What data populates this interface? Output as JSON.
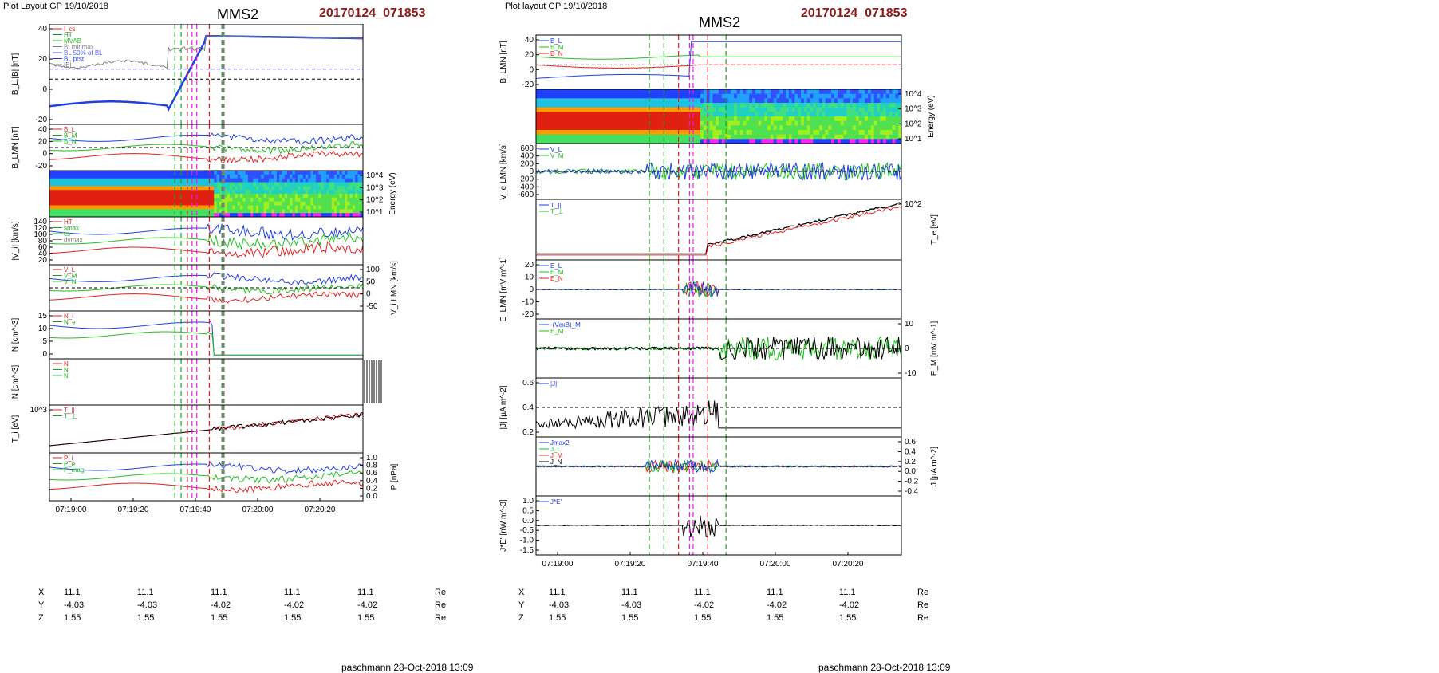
{
  "left": {
    "header": "Plot Layout GP 19/10/2018",
    "title": "MMS2",
    "event": "20170124_071853",
    "footer": "paschmann 28-Oct-2018 13:09",
    "xticks": [
      "07:19:00",
      "07:19:20",
      "07:19:40",
      "07:20:00",
      "07:20:20"
    ],
    "coords": {
      "rows": [
        {
          "label": "X",
          "values": [
            "11.1",
            "11.1",
            "11.1",
            "11.1",
            "11.1"
          ],
          "unit": "Re"
        },
        {
          "label": "Y",
          "values": [
            "-4.03",
            "-4.03",
            "-4.02",
            "-4.02",
            "-4.02"
          ],
          "unit": "Re"
        },
        {
          "label": "Z",
          "values": [
            "1.55",
            "1.55",
            "1.55",
            "1.55",
            "1.55"
          ],
          "unit": "Re"
        }
      ]
    }
  },
  "right": {
    "header": "Plot layout GP 19/10/2018",
    "title": "MMS2",
    "event": "20170124_071853",
    "footer": "paschmann 28-Oct-2018 13:09",
    "xticks": [
      "07:19:00",
      "07:19:20",
      "07:19:40",
      "07:20:00",
      "07:20:20"
    ],
    "coords": {
      "rows": [
        {
          "label": "X",
          "values": [
            "11.1",
            "11.1",
            "11.1",
            "11.1",
            "11.1"
          ],
          "unit": "Re"
        },
        {
          "label": "Y",
          "values": [
            "-4.03",
            "-4.03",
            "-4.02",
            "-4.02",
            "-4.02"
          ],
          "unit": "Re"
        },
        {
          "label": "Z",
          "values": [
            "1.55",
            "1.55",
            "1.55",
            "1.55",
            "1.55"
          ],
          "unit": "Re"
        }
      ]
    }
  },
  "chart_data": [
    {
      "type": "line",
      "title": "MMS2",
      "panels": [
        {
          "ylabel": "B_L,|B| [nT]",
          "yticks": [
            "40",
            "20",
            "0",
            "-20"
          ],
          "legend": [
            "I_cs",
            "HT",
            "MVAB",
            "BLminmax",
            "BL 50% of BL",
            "BL prst",
            "|B|"
          ],
          "series": [
            {
              "name": "BL prst",
              "color": "#1f3fe0"
            },
            {
              "name": "|B|",
              "color": "#808080"
            }
          ]
        },
        {
          "ylabel": "B_LMN [nT]",
          "yticks": [
            "40",
            "20",
            "0",
            "-20"
          ],
          "legend": [
            "B_L",
            "B_M",
            "B_N"
          ]
        },
        {
          "ylabel": "Energy (eV)",
          "yticks": [
            "10^4",
            "10^3",
            "10^2",
            "10^1"
          ],
          "kind": "spectrogram"
        },
        {
          "ylabel": "|V_i| [km/s]",
          "yticks": [
            "140",
            "120",
            "100",
            "80",
            "60",
            "40",
            "20"
          ],
          "legend": [
            "HT",
            "smax",
            "cs",
            "dvmax"
          ]
        },
        {
          "ylabel": "V_i LMN [km/s]",
          "yticks": [
            "100",
            "50",
            "0",
            "-50"
          ],
          "legend": [
            "V_L",
            "V_M",
            "V_N"
          ]
        },
        {
          "ylabel": "N [cm^-3]",
          "yticks": [
            "15",
            "10",
            "5",
            "0"
          ],
          "legend": [
            "N_i",
            "N_e"
          ]
        },
        {
          "ylabel": "N [cm^-3]",
          "legend": [
            "N",
            "N",
            "N"
          ]
        },
        {
          "ylabel": "T_i [eV]",
          "yticks": [
            "10^3"
          ],
          "legend": [
            "T_||",
            "T_⊥"
          ]
        },
        {
          "ylabel": "P [nPa]",
          "yticks": [
            "1.0",
            "0.8",
            "0.6",
            "0.4",
            "0.2",
            "0.0"
          ],
          "legend": [
            "P_i",
            "P_e",
            "P_mag"
          ]
        }
      ]
    },
    {
      "type": "line",
      "title": "MMS2",
      "panels": [
        {
          "ylabel": "B_LMN [nT]",
          "yticks": [
            "40",
            "20",
            "0",
            "-20"
          ],
          "legend": [
            "B_L",
            "B_M",
            "B_N"
          ]
        },
        {
          "ylabel": "Energy (eV)",
          "yticks": [
            "10^4",
            "10^3",
            "10^2",
            "10^1"
          ],
          "kind": "spectrogram"
        },
        {
          "ylabel": "V_e LMN [km/s]",
          "yticks": [
            "600",
            "400",
            "200",
            "0",
            "-200",
            "-400",
            "-600"
          ],
          "legend": [
            "V_L",
            "V_M"
          ]
        },
        {
          "ylabel": "T_e [eV]",
          "yticks": [
            "10^2"
          ],
          "legend": [
            "T_||",
            "T_⊥"
          ]
        },
        {
          "ylabel": "E_LMN [mV m^-1]",
          "yticks": [
            "20",
            "10",
            "0",
            "-10",
            "-20"
          ],
          "legend": [
            "E_L",
            "E_M",
            "E_N"
          ]
        },
        {
          "ylabel": "E_M [mV m^-1]",
          "yticks": [
            "10",
            "0",
            "-10"
          ],
          "legend": [
            "-(VexB)_M",
            "E_M"
          ]
        },
        {
          "ylabel": "|J| [µA m^-2]",
          "yticks": [
            "0.6",
            "0.4",
            "0.2"
          ],
          "legend": [
            "|J|"
          ]
        },
        {
          "ylabel": "J [µA m^-2]",
          "yticks": [
            "0.6",
            "0.4",
            "0.2",
            "0.0",
            "-0.2",
            "-0.4"
          ],
          "legend": [
            "Jmax2",
            "J_L",
            "J_M",
            "J_N"
          ]
        },
        {
          "ylabel": "J*E' [nW m^-3]",
          "yticks": [
            "1.0",
            "0.5",
            "0.0",
            "-0.5",
            "-1.0",
            "-1.5"
          ],
          "legend": [
            "J*E'"
          ]
        }
      ]
    }
  ],
  "colors": {
    "event": "#8b1a1a",
    "blue": "#1f3fe0",
    "red": "#e02020",
    "green": "#20c020",
    "black": "#000000",
    "magenta": "#e020e0"
  }
}
